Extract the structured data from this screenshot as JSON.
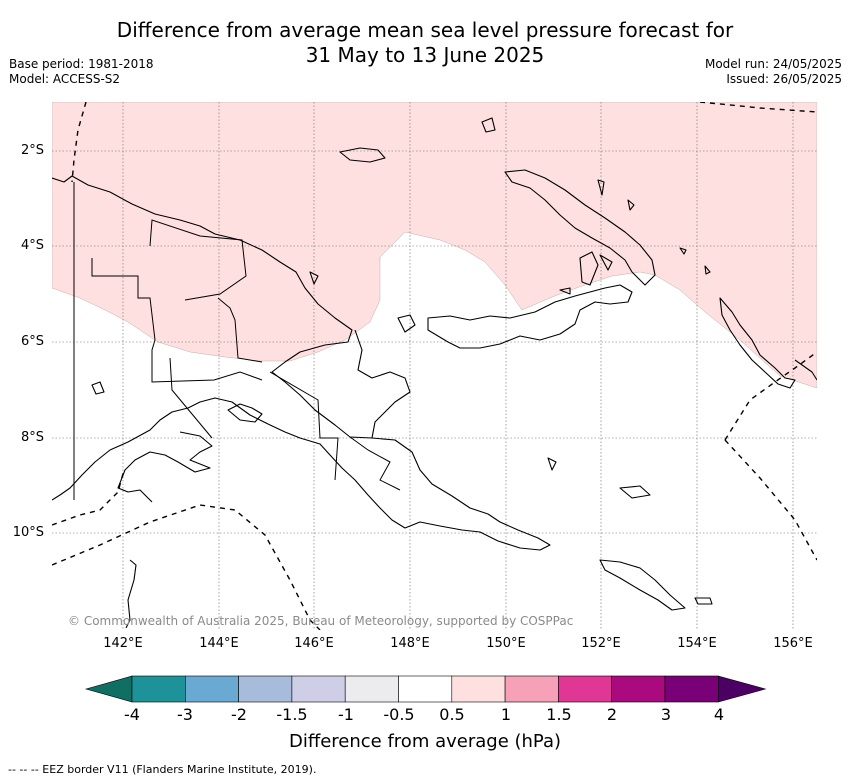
{
  "title_line1": "Difference from average mean sea level pressure forecast for",
  "title_line2": "31 May to 13 June 2025",
  "base_period": "Base period: 1981-2018",
  "model": "Model: ACCESS-S2",
  "model_run": "Model run: 24/05/2025",
  "issued": "Issued: 26/05/2025",
  "lat_labels": [
    "2°S",
    "4°S",
    "6°S",
    "8°S",
    "10°S"
  ],
  "lon_labels": [
    "142°E",
    "144°E",
    "146°E",
    "148°E",
    "150°E",
    "152°E",
    "154°E",
    "156°E"
  ],
  "copyright": "© Commonwealth of Australia 2025, Bureau of Meteorology, supported by COSPPac",
  "colorbar": {
    "label": "Difference from average (hPa)",
    "ticks": [
      "-4",
      "-3",
      "-2",
      "-1.5",
      "-1",
      "-0.5",
      "0.5",
      "1",
      "1.5",
      "2",
      "3",
      "4"
    ],
    "colors": [
      "#0f6f63",
      "#1d9399",
      "#6aaad2",
      "#a7bcdb",
      "#cecfe6",
      "#ececef",
      "#ffffff",
      "#fde0df",
      "#f7a1b8",
      "#df3793",
      "#aa0a7e",
      "#7a0077",
      "#4c0064"
    ]
  },
  "map_fill": {
    "positive_anomaly_color": "#fde0df",
    "land_color": "#ffffff",
    "coast_color": "#000000"
  },
  "footnote": "--  --  -- EEZ border V11 (Flanders Marine Institute, 2019)."
}
